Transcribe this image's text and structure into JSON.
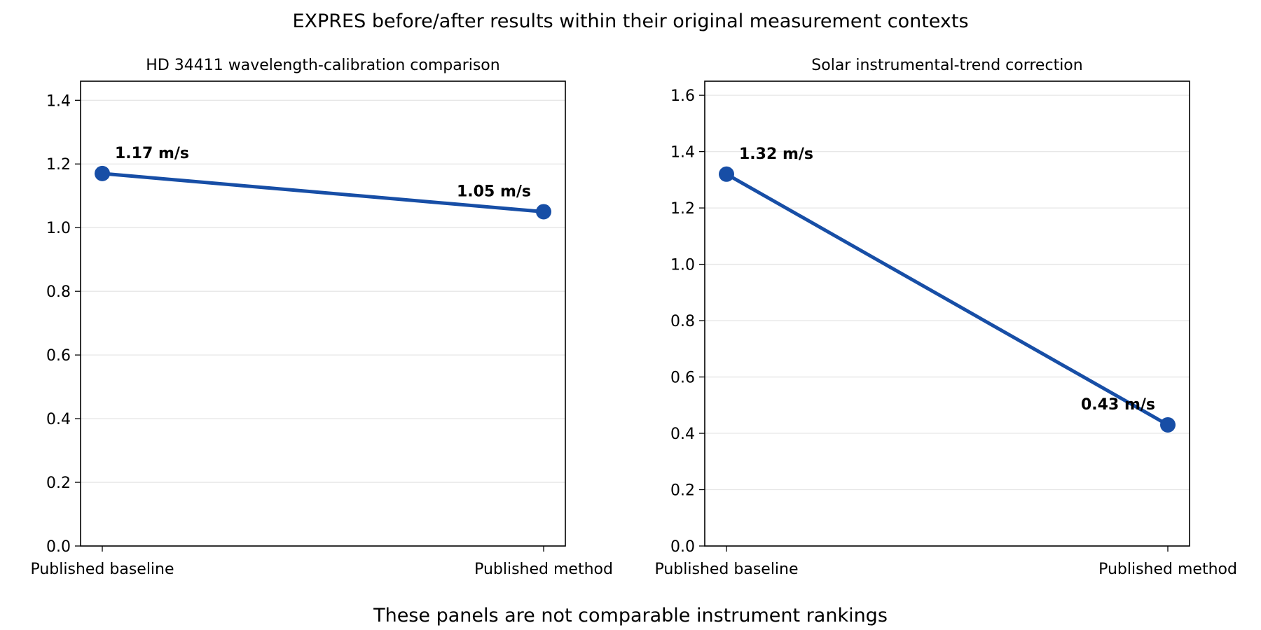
{
  "figure": {
    "title": "EXPRES before/after results within their original measurement contexts",
    "footnote": "These panels are not comparable instrument rankings"
  },
  "colors": {
    "series": "#174ea6",
    "grid": "#e6e6e6",
    "axis": "#000000"
  },
  "chart_data": [
    {
      "type": "line",
      "title": "HD 34411 wavelength-calibration comparison",
      "categories": [
        "Published baseline",
        "Published method"
      ],
      "values": [
        1.17,
        1.05
      ],
      "data_labels": [
        "1.17 m/s",
        "1.05 m/s"
      ],
      "ylim": [
        0,
        1.46
      ],
      "yticks": [
        0.0,
        0.2,
        0.4,
        0.6,
        0.8,
        1.0,
        1.2,
        1.4
      ],
      "ytick_labels": [
        "0.0",
        "0.2",
        "0.4",
        "0.6",
        "0.8",
        "1.0",
        "1.2",
        "1.4"
      ],
      "grid": "horizontal",
      "legend": "none"
    },
    {
      "type": "line",
      "title": "Solar instrumental-trend correction",
      "categories": [
        "Published baseline",
        "Published method"
      ],
      "values": [
        1.32,
        0.43
      ],
      "data_labels": [
        "1.32 m/s",
        "0.43 m/s"
      ],
      "ylim": [
        0,
        1.65
      ],
      "yticks": [
        0.0,
        0.2,
        0.4,
        0.6,
        0.8,
        1.0,
        1.2,
        1.4,
        1.6
      ],
      "ytick_labels": [
        "0.0",
        "0.2",
        "0.4",
        "0.6",
        "0.8",
        "1.0",
        "1.2",
        "1.4",
        "1.6"
      ],
      "grid": "horizontal",
      "legend": "none"
    }
  ]
}
